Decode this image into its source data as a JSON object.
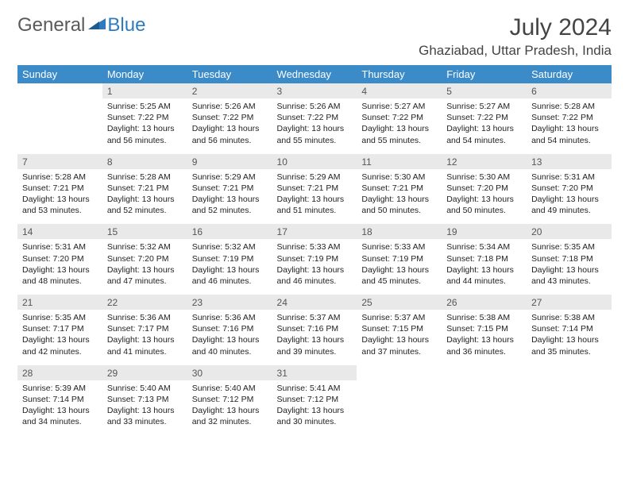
{
  "brand": {
    "part1": "General",
    "part2": "Blue"
  },
  "title": "July 2024",
  "location": "Ghaziabad, Uttar Pradesh, India",
  "colors": {
    "header_bg": "#3b8bc9",
    "header_text": "#ffffff",
    "daynum_bg": "#e9e9e9",
    "row_divider": "#2f6ea3",
    "logo_gray": "#5a5a5a",
    "logo_blue": "#2f7bbf"
  },
  "day_headers": [
    "Sunday",
    "Monday",
    "Tuesday",
    "Wednesday",
    "Thursday",
    "Friday",
    "Saturday"
  ],
  "weeks": [
    {
      "nums": [
        "",
        "1",
        "2",
        "3",
        "4",
        "5",
        "6"
      ],
      "cells": [
        null,
        {
          "sunrise": "5:25 AM",
          "sunset": "7:22 PM",
          "daylight": "13 hours and 56 minutes."
        },
        {
          "sunrise": "5:26 AM",
          "sunset": "7:22 PM",
          "daylight": "13 hours and 56 minutes."
        },
        {
          "sunrise": "5:26 AM",
          "sunset": "7:22 PM",
          "daylight": "13 hours and 55 minutes."
        },
        {
          "sunrise": "5:27 AM",
          "sunset": "7:22 PM",
          "daylight": "13 hours and 55 minutes."
        },
        {
          "sunrise": "5:27 AM",
          "sunset": "7:22 PM",
          "daylight": "13 hours and 54 minutes."
        },
        {
          "sunrise": "5:28 AM",
          "sunset": "7:22 PM",
          "daylight": "13 hours and 54 minutes."
        }
      ]
    },
    {
      "nums": [
        "7",
        "8",
        "9",
        "10",
        "11",
        "12",
        "13"
      ],
      "cells": [
        {
          "sunrise": "5:28 AM",
          "sunset": "7:21 PM",
          "daylight": "13 hours and 53 minutes."
        },
        {
          "sunrise": "5:28 AM",
          "sunset": "7:21 PM",
          "daylight": "13 hours and 52 minutes."
        },
        {
          "sunrise": "5:29 AM",
          "sunset": "7:21 PM",
          "daylight": "13 hours and 52 minutes."
        },
        {
          "sunrise": "5:29 AM",
          "sunset": "7:21 PM",
          "daylight": "13 hours and 51 minutes."
        },
        {
          "sunrise": "5:30 AM",
          "sunset": "7:21 PM",
          "daylight": "13 hours and 50 minutes."
        },
        {
          "sunrise": "5:30 AM",
          "sunset": "7:20 PM",
          "daylight": "13 hours and 50 minutes."
        },
        {
          "sunrise": "5:31 AM",
          "sunset": "7:20 PM",
          "daylight": "13 hours and 49 minutes."
        }
      ]
    },
    {
      "nums": [
        "14",
        "15",
        "16",
        "17",
        "18",
        "19",
        "20"
      ],
      "cells": [
        {
          "sunrise": "5:31 AM",
          "sunset": "7:20 PM",
          "daylight": "13 hours and 48 minutes."
        },
        {
          "sunrise": "5:32 AM",
          "sunset": "7:20 PM",
          "daylight": "13 hours and 47 minutes."
        },
        {
          "sunrise": "5:32 AM",
          "sunset": "7:19 PM",
          "daylight": "13 hours and 46 minutes."
        },
        {
          "sunrise": "5:33 AM",
          "sunset": "7:19 PM",
          "daylight": "13 hours and 46 minutes."
        },
        {
          "sunrise": "5:33 AM",
          "sunset": "7:19 PM",
          "daylight": "13 hours and 45 minutes."
        },
        {
          "sunrise": "5:34 AM",
          "sunset": "7:18 PM",
          "daylight": "13 hours and 44 minutes."
        },
        {
          "sunrise": "5:35 AM",
          "sunset": "7:18 PM",
          "daylight": "13 hours and 43 minutes."
        }
      ]
    },
    {
      "nums": [
        "21",
        "22",
        "23",
        "24",
        "25",
        "26",
        "27"
      ],
      "cells": [
        {
          "sunrise": "5:35 AM",
          "sunset": "7:17 PM",
          "daylight": "13 hours and 42 minutes."
        },
        {
          "sunrise": "5:36 AM",
          "sunset": "7:17 PM",
          "daylight": "13 hours and 41 minutes."
        },
        {
          "sunrise": "5:36 AM",
          "sunset": "7:16 PM",
          "daylight": "13 hours and 40 minutes."
        },
        {
          "sunrise": "5:37 AM",
          "sunset": "7:16 PM",
          "daylight": "13 hours and 39 minutes."
        },
        {
          "sunrise": "5:37 AM",
          "sunset": "7:15 PM",
          "daylight": "13 hours and 37 minutes."
        },
        {
          "sunrise": "5:38 AM",
          "sunset": "7:15 PM",
          "daylight": "13 hours and 36 minutes."
        },
        {
          "sunrise": "5:38 AM",
          "sunset": "7:14 PM",
          "daylight": "13 hours and 35 minutes."
        }
      ]
    },
    {
      "nums": [
        "28",
        "29",
        "30",
        "31",
        "",
        "",
        ""
      ],
      "cells": [
        {
          "sunrise": "5:39 AM",
          "sunset": "7:14 PM",
          "daylight": "13 hours and 34 minutes."
        },
        {
          "sunrise": "5:40 AM",
          "sunset": "7:13 PM",
          "daylight": "13 hours and 33 minutes."
        },
        {
          "sunrise": "5:40 AM",
          "sunset": "7:12 PM",
          "daylight": "13 hours and 32 minutes."
        },
        {
          "sunrise": "5:41 AM",
          "sunset": "7:12 PM",
          "daylight": "13 hours and 30 minutes."
        },
        null,
        null,
        null
      ]
    }
  ],
  "labels": {
    "sunrise": "Sunrise: ",
    "sunset": "Sunset: ",
    "daylight": "Daylight: "
  }
}
